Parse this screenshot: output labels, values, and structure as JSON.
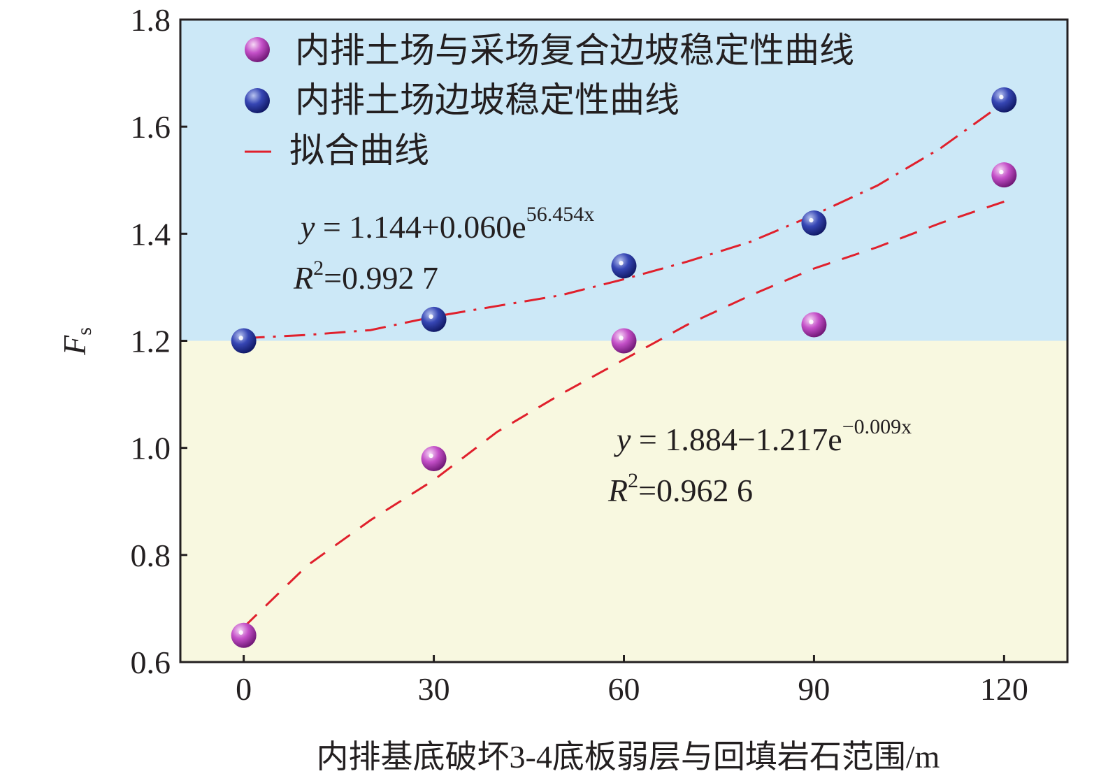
{
  "chart_data": {
    "type": "scatter",
    "title": "",
    "xlabel": "内排基底破坏3-4底板弱层与回填岩石范围/m",
    "ylabel": {
      "main": "F",
      "sub": "s"
    },
    "xlim": [
      -10,
      130
    ],
    "ylim": [
      0.6,
      1.8
    ],
    "x_ticks": [
      0,
      30,
      60,
      90,
      120
    ],
    "x_tick_labels": [
      "0",
      "30",
      "60",
      "90",
      "120"
    ],
    "y_ticks": [
      0.6,
      0.8,
      1.0,
      1.2,
      1.4,
      1.6,
      1.8
    ],
    "y_tick_labels": [
      "0.6",
      "0.8",
      "1.0",
      "1.2",
      "1.4",
      "1.6",
      "1.8"
    ],
    "grid": false,
    "legend_position": "top-left",
    "background_bands": [
      {
        "from": 1.2,
        "to": 1.8,
        "color": "#cce8f7"
      },
      {
        "from": 0.6,
        "to": 1.2,
        "color": "#f8f8e0"
      }
    ],
    "series": [
      {
        "name": "内排土场与采场复合边坡稳定性曲线",
        "marker": "sphere",
        "color": "#b040b8",
        "x": [
          0,
          30,
          60,
          90,
          120
        ],
        "y": [
          0.65,
          0.98,
          1.2,
          1.23,
          1.51
        ]
      },
      {
        "name": "内排土场边坡稳定性曲线",
        "marker": "sphere",
        "color": "#2a3aa0",
        "x": [
          0,
          30,
          60,
          90,
          120
        ],
        "y": [
          1.2,
          1.24,
          1.34,
          1.42,
          1.65
        ]
      }
    ],
    "fit_legend_label": "拟合曲线",
    "fit_color": "#e0202c",
    "fits": [
      {
        "style": "dashdot",
        "x": [
          0,
          10,
          20,
          30,
          40,
          50,
          60,
          70,
          80,
          90,
          100,
          110,
          120
        ],
        "y": [
          1.205,
          1.211,
          1.22,
          1.245,
          1.265,
          1.285,
          1.315,
          1.348,
          1.385,
          1.435,
          1.49,
          1.56,
          1.645
        ],
        "equation": {
          "prefix": "y",
          "body": " = 1.144+0.060e",
          "sup": "56.454x"
        },
        "r2": {
          "prefix": "R",
          "sup": "2",
          "value": "=0.992 7"
        }
      },
      {
        "style": "dashed",
        "x": [
          0,
          10,
          20,
          30,
          40,
          50,
          60,
          70,
          80,
          90,
          100,
          110,
          120
        ],
        "y": [
          0.665,
          0.78,
          0.865,
          0.94,
          1.03,
          1.1,
          1.165,
          1.23,
          1.285,
          1.335,
          1.375,
          1.42,
          1.46
        ],
        "equation": {
          "prefix": "y",
          "body": " = 1.884−1.217e",
          "sup": "−0.009x"
        },
        "r2": {
          "prefix": "R",
          "sup": "2",
          "value": "=0.962 6"
        }
      }
    ]
  }
}
